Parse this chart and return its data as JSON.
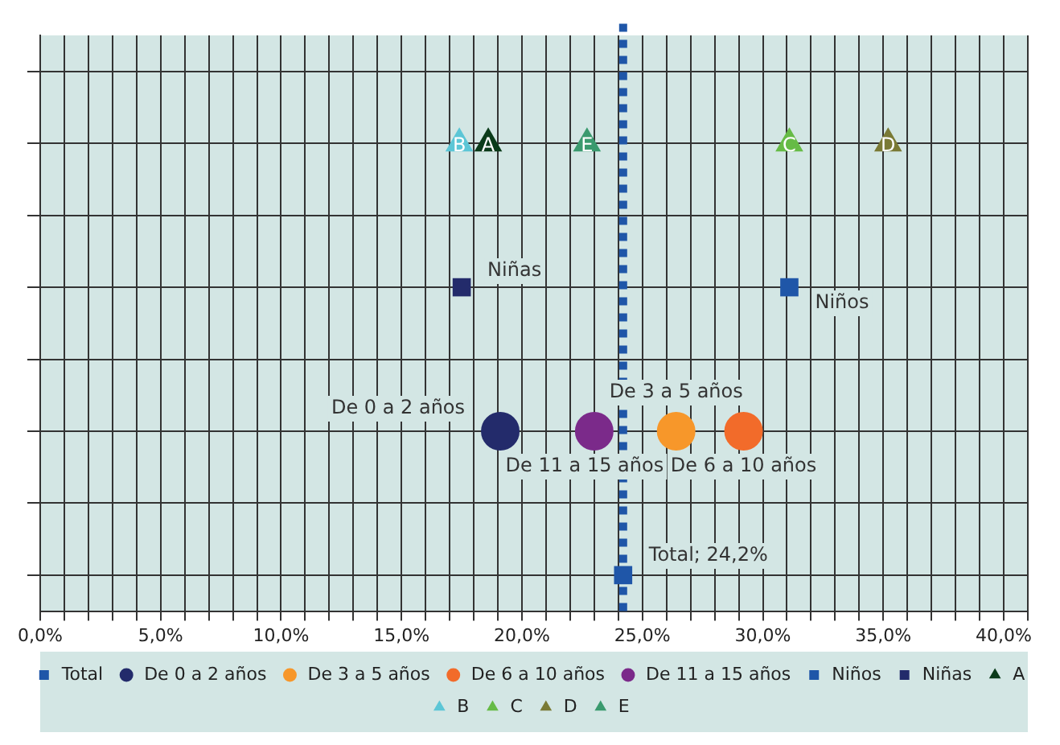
{
  "chart_data": {
    "type": "scatter",
    "orientation": "horizontal",
    "categories": [
      null,
      null,
      null,
      null,
      null,
      null,
      null,
      null
    ],
    "xlim": [
      0,
      41
    ],
    "xticks": [
      {
        "value": 0,
        "label": "0,0%"
      },
      {
        "value": 1,
        "label": null
      },
      {
        "value": 2,
        "label": null
      },
      {
        "value": 3,
        "label": null
      },
      {
        "value": 4,
        "label": null
      },
      {
        "value": 5,
        "label": "5,0%"
      },
      {
        "value": 6,
        "label": null
      },
      {
        "value": 7,
        "label": null
      },
      {
        "value": 8,
        "label": null
      },
      {
        "value": 9,
        "label": null
      },
      {
        "value": 10,
        "label": "10,0%"
      },
      {
        "value": 11,
        "label": null
      },
      {
        "value": 12,
        "label": null
      },
      {
        "value": 13,
        "label": null
      },
      {
        "value": 14,
        "label": null
      },
      {
        "value": 15,
        "label": "15,0%"
      },
      {
        "value": 16,
        "label": null
      },
      {
        "value": 17,
        "label": null
      },
      {
        "value": 18,
        "label": null
      },
      {
        "value": 19,
        "label": null
      },
      {
        "value": 20,
        "label": "20,0%"
      },
      {
        "value": 21,
        "label": null
      },
      {
        "value": 22,
        "label": null
      },
      {
        "value": 23,
        "label": null
      },
      {
        "value": 24,
        "label": null
      },
      {
        "value": 25,
        "label": "25,0%"
      },
      {
        "value": 26,
        "label": null
      },
      {
        "value": 27,
        "label": null
      },
      {
        "value": 28,
        "label": null
      },
      {
        "value": 29,
        "label": null
      },
      {
        "value": 30,
        "label": "30,0%"
      },
      {
        "value": 31,
        "label": null
      },
      {
        "value": 32,
        "label": null
      },
      {
        "value": 33,
        "label": null
      },
      {
        "value": 34,
        "label": null
      },
      {
        "value": 35,
        "label": "35,0%"
      },
      {
        "value": 36,
        "label": null
      },
      {
        "value": 37,
        "label": null
      },
      {
        "value": 38,
        "label": null
      },
      {
        "value": 39,
        "label": null
      },
      {
        "value": 40,
        "label": "40,0%"
      },
      {
        "value": 41,
        "label": null
      }
    ],
    "tick_labels": "x",
    "grid": true,
    "legend": "bottom",
    "ref_lines": [
      {
        "axis": "x",
        "value": 24.2,
        "color": "#1f56a8",
        "line_style": "dotted"
      }
    ],
    "annotations": [
      {
        "text": "Total; 24,2%",
        "x": 24.2
      }
    ],
    "series": [
      {
        "name": "Total",
        "marker": "square",
        "color": "#1f56a8",
        "values": [
          null,
          null,
          null,
          null,
          null,
          null,
          null,
          24.2
        ]
      },
      {
        "name": "De 0 a 2 años",
        "marker": "circle",
        "color": "#232b6b",
        "values": [
          null,
          null,
          null,
          null,
          null,
          19.1,
          null,
          null
        ]
      },
      {
        "name": "De 3 a 5 años",
        "marker": "circle",
        "color": "#f7972a",
        "values": [
          null,
          null,
          null,
          null,
          null,
          26.4,
          null,
          null
        ]
      },
      {
        "name": "De 6 a 10 años",
        "marker": "circle",
        "color": "#f26b2a",
        "values": [
          null,
          null,
          null,
          null,
          null,
          29.2,
          null,
          null
        ]
      },
      {
        "name": "De 11 a 15 años",
        "marker": "circle",
        "color": "#7b2a8a",
        "values": [
          null,
          null,
          null,
          null,
          null,
          23.0,
          null,
          null
        ]
      },
      {
        "name": "Niños",
        "marker": "square",
        "color": "#1f56a8",
        "values": [
          null,
          null,
          null,
          31.1,
          null,
          null,
          null,
          null
        ]
      },
      {
        "name": "Niñas",
        "marker": "square",
        "color": "#232b6b",
        "values": [
          null,
          null,
          null,
          17.5,
          null,
          null,
          null,
          null
        ]
      },
      {
        "name": "A",
        "marker": "triangle",
        "color": "#0b3b1a",
        "values": [
          null,
          18.6,
          null,
          null,
          null,
          null,
          null,
          null
        ]
      },
      {
        "name": "B",
        "marker": "triangle",
        "color": "#5cc6d6",
        "values": [
          null,
          17.4,
          null,
          null,
          null,
          null,
          null,
          null
        ]
      },
      {
        "name": "C",
        "marker": "triangle",
        "color": "#66bb46",
        "values": [
          null,
          31.1,
          null,
          null,
          null,
          null,
          null,
          null
        ]
      },
      {
        "name": "D",
        "marker": "triangle",
        "color": "#7a7a35",
        "values": [
          null,
          35.2,
          null,
          null,
          null,
          null,
          null,
          null
        ]
      },
      {
        "name": "E",
        "marker": "triangle",
        "color": "#3a9a6e",
        "values": [
          null,
          22.7,
          null,
          null,
          null,
          null,
          null,
          null
        ]
      }
    ]
  }
}
